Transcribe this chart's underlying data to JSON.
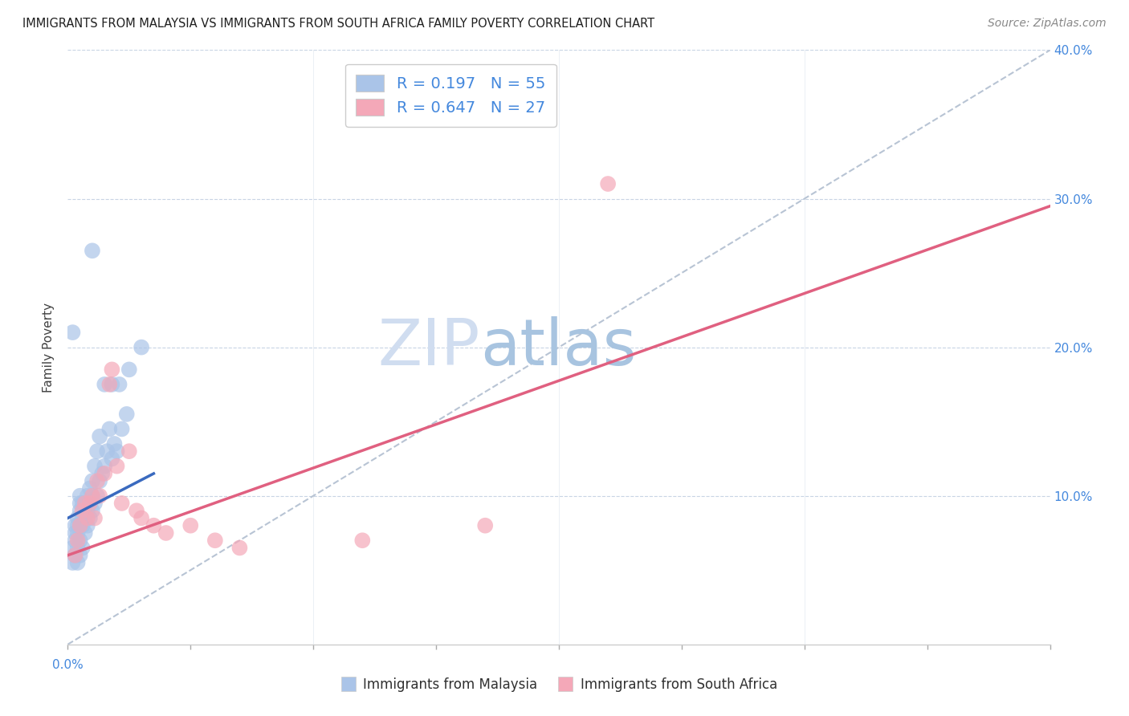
{
  "title": "IMMIGRANTS FROM MALAYSIA VS IMMIGRANTS FROM SOUTH AFRICA FAMILY POVERTY CORRELATION CHART",
  "source": "Source: ZipAtlas.com",
  "ylabel": "Family Poverty",
  "legend_labels": [
    "Immigrants from Malaysia",
    "Immigrants from South Africa"
  ],
  "malaysia_color": "#aac4e8",
  "south_africa_color": "#f4a8b8",
  "malaysia_line_color": "#3a6abf",
  "south_africa_line_color": "#e06080",
  "diagonal_color": "#b8c4d4",
  "background_color": "#ffffff",
  "grid_color": "#c8d4e4",
  "title_color": "#202020",
  "source_color": "#888888",
  "axis_tick_color": "#4488dd",
  "ylabel_color": "#404040",
  "watermark_zip": "ZIP",
  "watermark_atlas": "atlas",
  "watermark_color_zip": "#d0ddf0",
  "watermark_color_atlas": "#a8c4e0",
  "R_malaysia": 0.197,
  "N_malaysia": 55,
  "R_south_africa": 0.647,
  "N_south_africa": 27,
  "xlim": [
    0.0,
    0.4
  ],
  "ylim": [
    0.0,
    0.4
  ],
  "malaysia_x": [
    0.002,
    0.002,
    0.003,
    0.003,
    0.003,
    0.003,
    0.004,
    0.004,
    0.004,
    0.004,
    0.004,
    0.005,
    0.005,
    0.005,
    0.005,
    0.005,
    0.005,
    0.006,
    0.006,
    0.006,
    0.006,
    0.007,
    0.007,
    0.007,
    0.008,
    0.008,
    0.008,
    0.009,
    0.009,
    0.009,
    0.01,
    0.01,
    0.01,
    0.011,
    0.011,
    0.012,
    0.012,
    0.013,
    0.013,
    0.014,
    0.015,
    0.015,
    0.016,
    0.017,
    0.018,
    0.018,
    0.019,
    0.02,
    0.021,
    0.022,
    0.024,
    0.025,
    0.01,
    0.03,
    0.002
  ],
  "malaysia_y": [
    0.055,
    0.065,
    0.06,
    0.07,
    0.075,
    0.08,
    0.055,
    0.065,
    0.075,
    0.08,
    0.085,
    0.06,
    0.07,
    0.08,
    0.09,
    0.095,
    0.1,
    0.065,
    0.08,
    0.085,
    0.095,
    0.075,
    0.085,
    0.095,
    0.08,
    0.09,
    0.1,
    0.085,
    0.095,
    0.105,
    0.09,
    0.1,
    0.11,
    0.095,
    0.12,
    0.1,
    0.13,
    0.11,
    0.14,
    0.115,
    0.12,
    0.175,
    0.13,
    0.145,
    0.125,
    0.175,
    0.135,
    0.13,
    0.175,
    0.145,
    0.155,
    0.185,
    0.265,
    0.2,
    0.21
  ],
  "south_africa_x": [
    0.003,
    0.004,
    0.005,
    0.006,
    0.007,
    0.008,
    0.009,
    0.01,
    0.011,
    0.012,
    0.013,
    0.015,
    0.017,
    0.018,
    0.02,
    0.022,
    0.025,
    0.028,
    0.03,
    0.035,
    0.04,
    0.05,
    0.06,
    0.07,
    0.22,
    0.17,
    0.12
  ],
  "south_africa_y": [
    0.06,
    0.07,
    0.08,
    0.09,
    0.095,
    0.085,
    0.095,
    0.1,
    0.085,
    0.11,
    0.1,
    0.115,
    0.175,
    0.185,
    0.12,
    0.095,
    0.13,
    0.09,
    0.085,
    0.08,
    0.075,
    0.08,
    0.07,
    0.065,
    0.31,
    0.08,
    0.07
  ],
  "mal_line_x": [
    0.0,
    0.035
  ],
  "mal_line_y": [
    0.085,
    0.115
  ],
  "sa_line_x": [
    0.0,
    0.4
  ],
  "sa_line_y": [
    0.06,
    0.295
  ]
}
